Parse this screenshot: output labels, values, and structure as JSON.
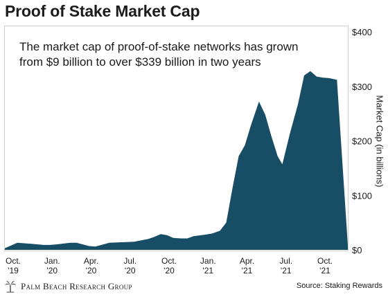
{
  "title": "Proof of Stake Market Cap",
  "annotation": {
    "line1": "The market cap of proof-of-stake networks has grown",
    "line2": "from $9 billion to over $339 billion in two years"
  },
  "footer": {
    "logo_text": "Palm Beach Research Group",
    "source": "Source: Staking Rewards"
  },
  "colors": {
    "area": "#174e66",
    "frame": "#cfcfcf"
  },
  "chart_data": {
    "type": "area",
    "ylabel": "Market Cap (in billions)",
    "ylim": [
      0,
      400
    ],
    "y_ticks": [
      0,
      100,
      200,
      300,
      400
    ],
    "y_tick_labels": [
      "$0",
      "$100",
      "$200",
      "$300",
      "$400"
    ],
    "x_range": [
      2019.75,
      2021.95
    ],
    "x_ticks": [
      {
        "x": 2019.75,
        "line1": "Oct.",
        "line2": "'19"
      },
      {
        "x": 2020.0,
        "line1": "Jan.",
        "line2": "'20"
      },
      {
        "x": 2020.25,
        "line1": "Apr.",
        "line2": "'20"
      },
      {
        "x": 2020.5,
        "line1": "Jul.",
        "line2": "'20"
      },
      {
        "x": 2020.75,
        "line1": "Oct.",
        "line2": "'20"
      },
      {
        "x": 2021.0,
        "line1": "Jan.",
        "line2": "'21"
      },
      {
        "x": 2021.25,
        "line1": "Apr.",
        "line2": "'21"
      },
      {
        "x": 2021.5,
        "line1": "Jul.",
        "line2": "'21"
      },
      {
        "x": 2021.75,
        "line1": "Oct.",
        "line2": "'21"
      }
    ],
    "grid": false,
    "series": [
      {
        "x": [
          2019.75,
          2019.83,
          2019.92,
          2020.0,
          2020.04,
          2020.08,
          2020.17,
          2020.21,
          2020.25,
          2020.29,
          2020.33,
          2020.42,
          2020.5,
          2020.58,
          2020.67,
          2020.71,
          2020.75,
          2020.79,
          2020.83,
          2020.88,
          2020.92,
          2020.96,
          2021.04,
          2021.08,
          2021.13,
          2021.17,
          2021.21,
          2021.25,
          2021.29,
          2021.33,
          2021.38,
          2021.42,
          2021.46,
          2021.5,
          2021.53,
          2021.58,
          2021.63,
          2021.67,
          2021.71,
          2021.75,
          2021.79,
          2021.83,
          2021.88,
          2021.95
        ],
        "y": [
          3,
          13,
          11,
          9,
          9,
          10,
          13,
          13,
          10,
          7,
          6,
          13,
          14,
          15,
          20,
          24,
          29,
          27,
          22,
          21,
          21,
          25,
          28,
          30,
          35,
          50,
          113,
          172,
          192,
          230,
          272,
          248,
          208,
          172,
          157,
          215,
          267,
          320,
          328,
          318,
          316,
          315,
          312,
          9
        ]
      }
    ]
  }
}
